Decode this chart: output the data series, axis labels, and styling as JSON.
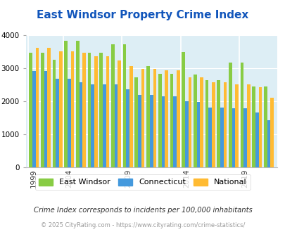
{
  "title": "East Windsor Property Crime Index",
  "title_color": "#1155bb",
  "subtitle": "Crime Index corresponds to incidents per 100,000 inhabitants",
  "footer": "© 2025 CityRating.com - https://www.cityrating.com/crime-statistics/",
  "years": [
    1999,
    2000,
    2003,
    2004,
    2005,
    2006,
    2007,
    2008,
    2009,
    2010,
    2011,
    2012,
    2013,
    2014,
    2015,
    2016,
    2017,
    2018,
    2019,
    2020,
    2021
  ],
  "east_windsor": [
    3460,
    3460,
    3250,
    3820,
    3820,
    3460,
    3460,
    3720,
    3720,
    2720,
    3050,
    2820,
    2820,
    3480,
    2800,
    2620,
    2620,
    3170,
    3170,
    2430,
    2430
  ],
  "connecticut": [
    2900,
    2900,
    2680,
    2680,
    2570,
    2500,
    2500,
    2500,
    2350,
    2180,
    2180,
    2130,
    2130,
    2000,
    1960,
    1800,
    1800,
    1780,
    1780,
    1660,
    1420
  ],
  "national": [
    3600,
    3600,
    3500,
    3500,
    3450,
    3350,
    3350,
    3230,
    3050,
    2970,
    2970,
    2920,
    2920,
    2720,
    2720,
    2560,
    2560,
    2500,
    2500,
    2420,
    2100
  ],
  "colors": {
    "east_windsor": "#88cc44",
    "connecticut": "#4499dd",
    "national": "#ffbb33"
  },
  "ylim": [
    0,
    4000
  ],
  "yticks": [
    0,
    1000,
    2000,
    3000,
    4000
  ],
  "bg_color": "#ddeef5",
  "legend_labels": [
    "East Windsor",
    "Connecticut",
    "National"
  ],
  "tick_years": [
    1999,
    2004,
    2009,
    2014,
    2019
  ]
}
